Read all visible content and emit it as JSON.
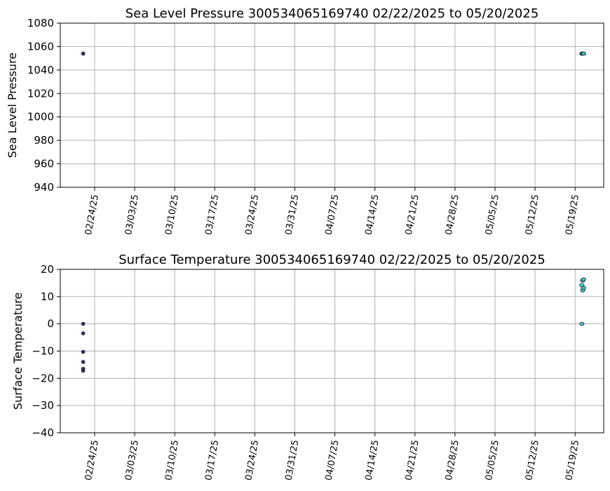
{
  "chart_data": [
    {
      "type": "scatter",
      "title": "Sea Level Pressure 300534065169740  02/22/2025 to 05/20/2025",
      "xlabel": "",
      "ylabel": "Sea Level Pressure",
      "xlim": [
        "2025-02-18",
        "2025-05-24"
      ],
      "ylim": [
        940,
        1080
      ],
      "yticks": [
        940,
        960,
        980,
        1000,
        1020,
        1040,
        1060,
        1080
      ],
      "xticks": [
        "02/24/25",
        "03/03/25",
        "03/10/25",
        "03/17/25",
        "03/24/25",
        "03/31/25",
        "04/07/25",
        "04/14/25",
        "04/21/25",
        "04/28/25",
        "05/05/25",
        "05/12/25",
        "05/19/25"
      ],
      "grid": true,
      "points": [
        {
          "x": "2025-02-22",
          "y": 1054,
          "color": "#3b3561"
        },
        {
          "x": "2025-02-22",
          "y": 1054,
          "color": "#3b3561"
        },
        {
          "x": "2025-05-20",
          "y": 1054,
          "color": "#3fc8c0"
        },
        {
          "x": "2025-05-20",
          "y": 1054,
          "color": "#40cbc2"
        },
        {
          "x": "2025-05-20",
          "y": 1054,
          "color": "#43d0c4"
        },
        {
          "x": "2025-05-20",
          "y": 1054,
          "color": "#3fc6bc"
        }
      ]
    },
    {
      "type": "scatter",
      "title": "Surface Temperature 300534065169740  02/22/2025 to 05/20/2025",
      "xlabel": "",
      "ylabel": "Surface Temperature",
      "xlim": [
        "2025-02-18",
        "2025-05-24"
      ],
      "ylim": [
        -40,
        20
      ],
      "yticks": [
        -40,
        -30,
        -20,
        -10,
        0,
        10,
        20
      ],
      "xticks": [
        "02/24/25",
        "03/03/25",
        "03/10/25",
        "03/17/25",
        "03/24/25",
        "03/31/25",
        "04/07/25",
        "04/14/25",
        "04/21/25",
        "04/28/25",
        "05/05/25",
        "05/12/25",
        "05/19/25"
      ],
      "grid": true,
      "points": [
        {
          "x": "2025-02-22",
          "y": 0,
          "color": "#3b3561"
        },
        {
          "x": "2025-02-22",
          "y": -3.5,
          "color": "#3b3561"
        },
        {
          "x": "2025-02-22",
          "y": -10.3,
          "color": "#3b3561"
        },
        {
          "x": "2025-02-22",
          "y": -14,
          "color": "#3b3561"
        },
        {
          "x": "2025-02-22",
          "y": -16.5,
          "color": "#3b3561"
        },
        {
          "x": "2025-02-22",
          "y": -17.2,
          "color": "#3b3561"
        },
        {
          "x": "2025-05-20",
          "y": 0,
          "color": "#3fc8c0"
        },
        {
          "x": "2025-05-20",
          "y": 12.3,
          "color": "#40cbc2"
        },
        {
          "x": "2025-05-20",
          "y": 13.2,
          "color": "#40cbc2"
        },
        {
          "x": "2025-05-20",
          "y": 14.2,
          "color": "#43d0c4"
        },
        {
          "x": "2025-05-20",
          "y": 15.9,
          "color": "#43d0c4"
        },
        {
          "x": "2025-05-20",
          "y": 16.3,
          "color": "#3fc6bc"
        }
      ]
    }
  ]
}
